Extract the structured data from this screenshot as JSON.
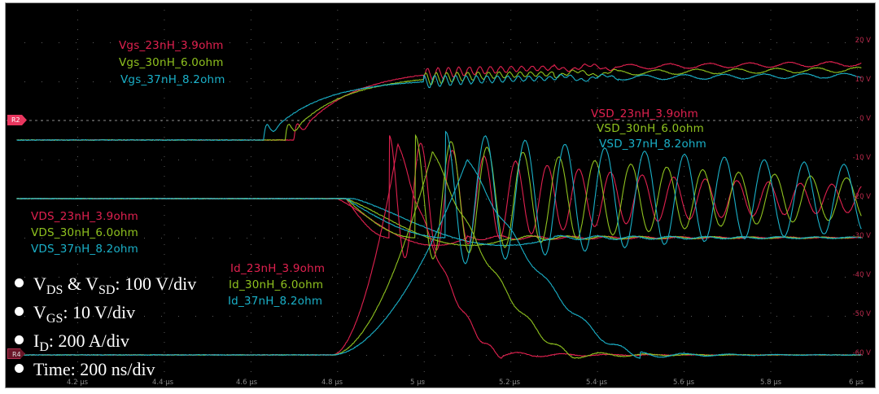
{
  "chart_data": {
    "type": "line",
    "title": "",
    "xlabel": "Time",
    "ylabel": "",
    "x_unit": "µs",
    "xlim": [
      4.1,
      6.02
    ],
    "x_ticks": [
      "4.2 µs",
      "4.4 µs",
      "4.6 µs",
      "4.8 µs",
      "5 µs",
      "5.2 µs",
      "5.4 µs",
      "5.6 µs",
      "5.8 µs",
      "6 µs"
    ],
    "x_tick_values": [
      4.2,
      4.4,
      4.6,
      4.8,
      5.0,
      5.2,
      5.4,
      5.6,
      5.8,
      6.0
    ],
    "y_ticks": [
      "20 V",
      "10 V",
      "0 V",
      "-10 V",
      "-20 V",
      "-30 V",
      "-40 V",
      "-50 V",
      "-60 V"
    ],
    "y_tick_values": [
      20,
      10,
      0,
      -10,
      -20,
      -30,
      -40,
      -50,
      -60
    ],
    "grid": true,
    "legend_position": "inline",
    "series_colors": {
      "23nH_3.9ohm": "#e0214f",
      "30nH_6.0ohm": "#8fc21f",
      "37nH_8.2ohm": "#1ab0c8"
    },
    "series": [
      {
        "name": "Vgs_23nH_3.9ohm",
        "group": "Vgs",
        "color": "#e0214f",
        "turn_on_us": 4.7,
        "start_V": -5,
        "plateau_V": 13,
        "final_V": 14.5
      },
      {
        "name": "Vgs_30nH_6.0ohm",
        "group": "Vgs",
        "color": "#8fc21f",
        "turn_on_us": 4.68,
        "start_V": -5,
        "plateau_V": 11.5,
        "final_V": 13
      },
      {
        "name": "Vgs_37nH_8.2ohm",
        "group": "Vgs",
        "color": "#1ab0c8",
        "turn_on_us": 4.63,
        "start_V": -5,
        "plateau_V": 10.5,
        "final_V": 11.5
      },
      {
        "name": "VDS_23nH_3.9ohm",
        "group": "VDS",
        "color": "#e0214f",
        "fall_start_us": 4.8,
        "fall_end_us": 5.05,
        "off_div": -2.0,
        "on_div": -3.0
      },
      {
        "name": "VDS_30nH_6.0ohm",
        "group": "VDS",
        "color": "#8fc21f",
        "fall_start_us": 4.82,
        "fall_end_us": 5.15,
        "off_div": -2.0,
        "on_div": -3.0
      },
      {
        "name": "VDS_37nH_8.2ohm",
        "group": "VDS",
        "color": "#1ab0c8",
        "fall_start_us": 4.84,
        "fall_end_us": 5.25,
        "off_div": -2.0,
        "on_div": -3.0
      },
      {
        "name": "VSD_23nH_3.9ohm",
        "group": "VSD",
        "color": "#e0214f",
        "rise_us": 4.92,
        "ring_period_us": 0.073,
        "ring_amp_div": 1.4,
        "ring_decay": 2.2,
        "settle_div": -2.0
      },
      {
        "name": "VSD_30nH_6.0ohm",
        "group": "VSD",
        "color": "#8fc21f",
        "rise_us": 4.98,
        "ring_period_us": 0.083,
        "ring_amp_div": 1.4,
        "ring_decay": 1.5,
        "settle_div": -2.0
      },
      {
        "name": "VSD_37nH_8.2ohm",
        "group": "VSD",
        "color": "#1ab0c8",
        "rise_us": 5.05,
        "ring_period_us": 0.092,
        "ring_amp_div": 1.5,
        "ring_decay": 0.9,
        "settle_div": -2.0
      },
      {
        "name": "Id_23nH_3.9ohm",
        "group": "Id",
        "color": "#e0214f",
        "rise_start_us": 4.79,
        "peak_us": 4.94,
        "peak_div": 5.4,
        "fall_end_us": 5.18
      },
      {
        "name": "Id_30nH_6.0ohm",
        "group": "Id",
        "color": "#8fc21f",
        "rise_start_us": 4.79,
        "peak_us": 5.02,
        "peak_div": 5.2,
        "fall_end_us": 5.35
      },
      {
        "name": "Id_37nH_8.2ohm",
        "group": "Id",
        "color": "#1ab0c8",
        "rise_start_us": 4.79,
        "peak_us": 5.1,
        "peak_div": 5.0,
        "fall_end_us": 5.5
      }
    ],
    "reference_markers": [
      {
        "label": "R2",
        "level_V": 0,
        "color": "#e8365e"
      },
      {
        "label": "R4",
        "level_V": -60,
        "color": "#7a1a30"
      }
    ],
    "annotations": [
      "VDS & VSD: 100 V/div",
      "VGS: 10 V/div",
      "ID: 200 A/div",
      "Time: 200 ns/div"
    ]
  },
  "legends": {
    "vgs": [
      "Vgs_23nH_3.9ohm",
      "Vgs_30nH_6.0ohm",
      "Vgs_37nH_8.2ohm"
    ],
    "vsd": [
      "VSD_23nH_3.9ohm",
      "VSD_30nH_6.0ohm",
      "VSD_37nH_8.2ohm"
    ],
    "vds": [
      "VDS_23nH_3.9ohm",
      "VDS_30nH_6.0ohm",
      "VDS_37nH_8.2ohm"
    ],
    "id": [
      "Id_23nH_3.9ohm",
      "Id_30nH_6.0ohm",
      "Id_37nH_8.2ohm"
    ]
  },
  "notes": {
    "vds_vsd": {
      "v1": "V",
      "s1": "DS",
      "mid": " & V",
      "s2": "SD",
      "tail": ": 100 V/div"
    },
    "vgs": {
      "v": "V",
      "s": "GS",
      "tail": ": 10 V/div"
    },
    "id": {
      "v": "I",
      "s": "D",
      "tail": ": 200 A/div"
    },
    "time": {
      "text": "Time: 200 ns/div"
    }
  },
  "axes": {
    "y": [
      "20 V",
      "10 V",
      "0 V",
      "-10 V",
      "-20 V",
      "-30 V",
      "-40 V",
      "-50 V",
      "-60 V"
    ],
    "x": [
      "4.2 µs",
      "4.4 µs",
      "4.6 µs",
      "4.8 µs",
      "5 µs",
      "5.2 µs",
      "5.4 µs",
      "5.6 µs",
      "5.8 µs",
      "6 µs"
    ]
  },
  "markers": {
    "r2": "R2",
    "r4": "R4"
  }
}
